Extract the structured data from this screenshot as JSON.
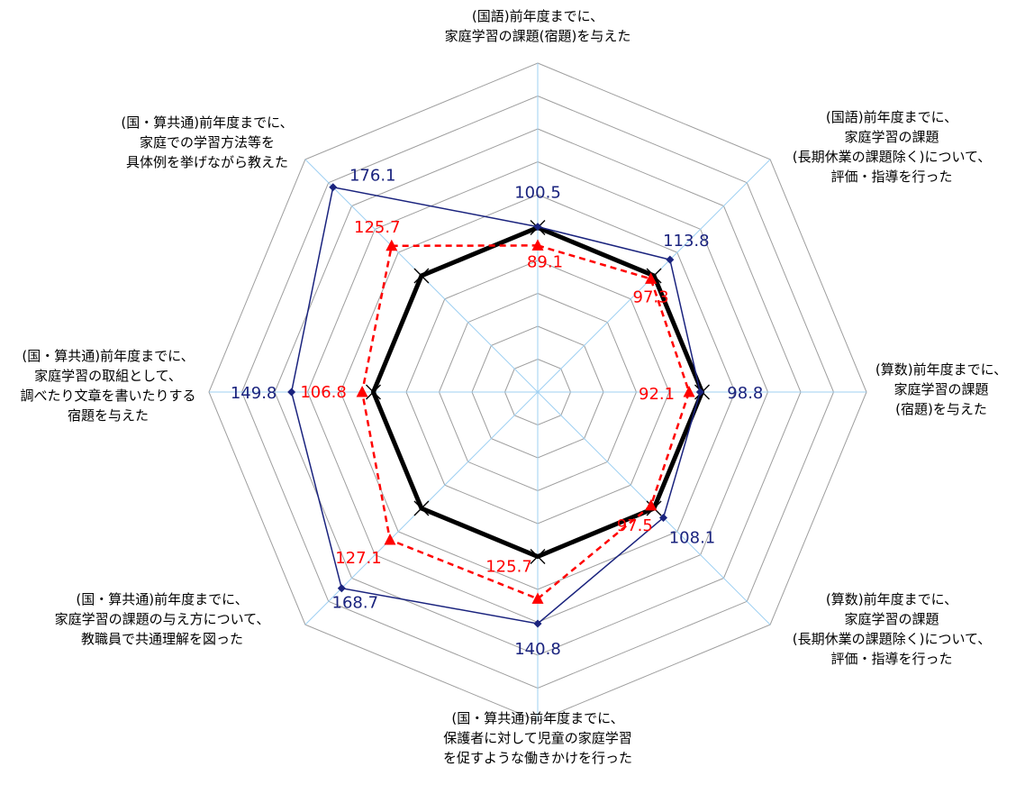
{
  "chart_data": {
    "type": "radar",
    "title": "",
    "rmax": 200,
    "ring_count": 10,
    "categories": [
      [
        "(国語)前年度までに、",
        "家庭学習の課題(宿題)を与えた"
      ],
      [
        "(国語)前年度までに、",
        "家庭学習の課題",
        "(長期休業の課題除く)について、",
        "評価・指導を行った"
      ],
      [
        "(算数)前年度までに、",
        "家庭学習の課題",
        "(宿題)を与えた"
      ],
      [
        "(算数)前年度までに、",
        "家庭学習の課題",
        "(長期休業の課題除く)について、",
        "評価・指導を行った"
      ],
      [
        "(国・算共通)前年度までに、",
        "保護者に対して児童の家庭学習",
        "を促すような働きかけを行った"
      ],
      [
        "(国・算共通)前年度までに、",
        "家庭学習の課題の与え方について、",
        "教職員で共通理解を図った"
      ],
      [
        "(国・算共通)前年度までに、",
        "家庭学習の取組として、",
        "調べたり文章を書いたりする",
        "宿題を与えた"
      ],
      [
        "(国・算共通)前年度までに、",
        "家庭での学習方法等を",
        "具体例を挙げながら教えた"
      ]
    ],
    "series": [
      {
        "values": [
          100,
          100,
          100,
          100,
          100,
          100,
          100,
          100
        ],
        "color": "#000000",
        "marker": "x",
        "show_labels": false
      },
      {
        "values": [
          100.5,
          113.8,
          98.8,
          108.1,
          140.8,
          168.7,
          149.8,
          176.1
        ],
        "labels": [
          "100.5",
          "113.8",
          "98.8",
          "108.1",
          "140.8",
          "168.7",
          "149.8",
          "176.1"
        ],
        "color": "#1a237e",
        "marker": "diamond",
        "show_labels": true
      },
      {
        "values": [
          89.1,
          97.3,
          92.1,
          97.5,
          125.7,
          127.1,
          106.8,
          125.7
        ],
        "labels": [
          "89.1",
          "97.3",
          "92.1",
          "97.5",
          "125.7",
          "127.1",
          "106.8",
          "125.7"
        ],
        "color": "#ff0000",
        "marker": "triangle",
        "show_labels": true
      }
    ]
  }
}
